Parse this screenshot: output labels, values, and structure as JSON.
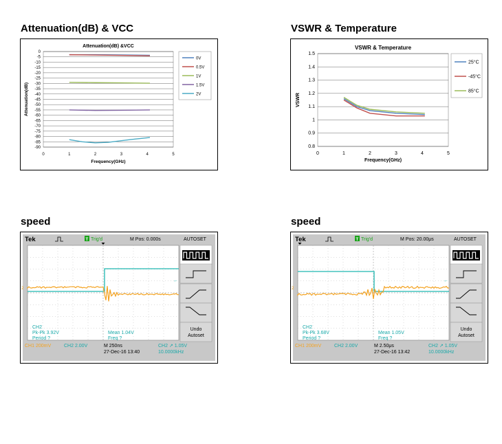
{
  "sections": {
    "s1": "Attenuation(dB) & VCC",
    "s2": "VSWR & Temperature",
    "s3": "speed",
    "s4": "speed"
  },
  "chart_data": [
    {
      "type": "line",
      "title": "Attenuation(dB) &VCC",
      "xlabel": "Frequency(GHz)",
      "ylabel": "Attenuation(dB)",
      "xlim": [
        0,
        5
      ],
      "ylim": [
        -90,
        0
      ],
      "xticks": [
        "0",
        "1",
        "2",
        "3",
        "4",
        "5"
      ],
      "yticks": [
        "0",
        "-5",
        "-10",
        "-15",
        "-20",
        "-25",
        "-30",
        "-35",
        "-40",
        "-45",
        "-50",
        "-55",
        "-60",
        "-65",
        "-70",
        "-75",
        "-80",
        "-85",
        "-90"
      ],
      "legend_position": "right",
      "series": [
        {
          "name": "0V",
          "color": "#4f81bd",
          "x": [
            1,
            2,
            3,
            4.1
          ],
          "y": [
            -3,
            -3,
            -3.2,
            -3.5
          ]
        },
        {
          "name": "0.5V",
          "color": "#c0504d",
          "x": [
            1,
            2,
            3,
            4.1
          ],
          "y": [
            -3,
            -3.3,
            -3.6,
            -4
          ]
        },
        {
          "name": "1V",
          "color": "#9bbb59",
          "x": [
            1,
            2,
            3,
            4.1
          ],
          "y": [
            -29,
            -29.3,
            -29.5,
            -29.8
          ]
        },
        {
          "name": "1.5V",
          "color": "#8064a2",
          "x": [
            1,
            2,
            3,
            4.1
          ],
          "y": [
            -55,
            -55.5,
            -55.3,
            -55
          ]
        },
        {
          "name": "2V",
          "color": "#4bacc6",
          "x": [
            1,
            1.5,
            2,
            2.5,
            3,
            3.5,
            4.1
          ],
          "y": [
            -83,
            -85,
            -86,
            -85.5,
            -84,
            -82.5,
            -81
          ]
        }
      ]
    },
    {
      "type": "line",
      "title": "VSWR & Temperature",
      "xlabel": "Frequency(GHz)",
      "ylabel": "VSWR",
      "xlim": [
        0,
        5
      ],
      "ylim": [
        0.8,
        1.5
      ],
      "xticks": [
        "0",
        "1",
        "2",
        "3",
        "4",
        "5"
      ],
      "yticks": [
        "0.8",
        "0.9",
        "1",
        "1.1",
        "1.2",
        "1.3",
        "1.4",
        "1.5"
      ],
      "legend_position": "right",
      "series": [
        {
          "name": "25°C",
          "color": "#4f81bd",
          "x": [
            1,
            1.5,
            2,
            3,
            4.1
          ],
          "y": [
            1.16,
            1.1,
            1.07,
            1.05,
            1.04
          ]
        },
        {
          "name": "-45°C",
          "color": "#c0504d",
          "x": [
            1,
            1.5,
            2,
            3,
            4.1
          ],
          "y": [
            1.15,
            1.09,
            1.05,
            1.03,
            1.03
          ]
        },
        {
          "name": "85°C",
          "color": "#9bbb59",
          "x": [
            1,
            1.5,
            2,
            3,
            4.1
          ],
          "y": [
            1.17,
            1.11,
            1.08,
            1.06,
            1.05
          ]
        }
      ]
    }
  ],
  "scopes": [
    {
      "brand": "Tek",
      "trig": "Trig'd",
      "mpos": "M Pos: 0.000s",
      "autoset": "AUTOSET",
      "ch2_label": "CH2",
      "pkpk": "Pk-Pk 3.92V",
      "period": "Period ?",
      "mean": "Mean 1.04V",
      "freq": "Freq ?",
      "ch1_scale": "CH1  200mV",
      "ch2_scale": "CH2  2.00V",
      "timebase": "M 250ns",
      "date": "27-Dec-16 13:40",
      "trig_ch": "CH2 ↗ 1.05V",
      "trig_freq": "10.0000kHz",
      "undo": "Undo",
      "undo2": "Autoset",
      "colors": {
        "ch1": "#f4a21f",
        "ch2": "#1db7b0",
        "label": "#19a9a9",
        "trig": "#1aa31a"
      }
    },
    {
      "brand": "Tek",
      "trig": "Trig'd",
      "mpos": "M Pos: 20.00μs",
      "autoset": "AUTOSET",
      "ch2_label": "CH2",
      "pkpk": "Pk-Pk 3.68V",
      "period": "Period ?",
      "mean": "Mean 1.05V",
      "freq": "Freq ?",
      "ch1_scale": "CH1  200mV",
      "ch2_scale": "CH2  2.00V",
      "timebase": "M 2.50μs",
      "date": "27-Dec-16 13:42",
      "trig_ch": "CH2 ↗ 1.05V",
      "trig_freq": "10.0000kHz",
      "undo": "Undo",
      "undo2": "Autoset",
      "colors": {
        "ch1": "#f4a21f",
        "ch2": "#1db7b0",
        "label": "#19a9a9",
        "trig": "#1aa31a"
      }
    }
  ]
}
